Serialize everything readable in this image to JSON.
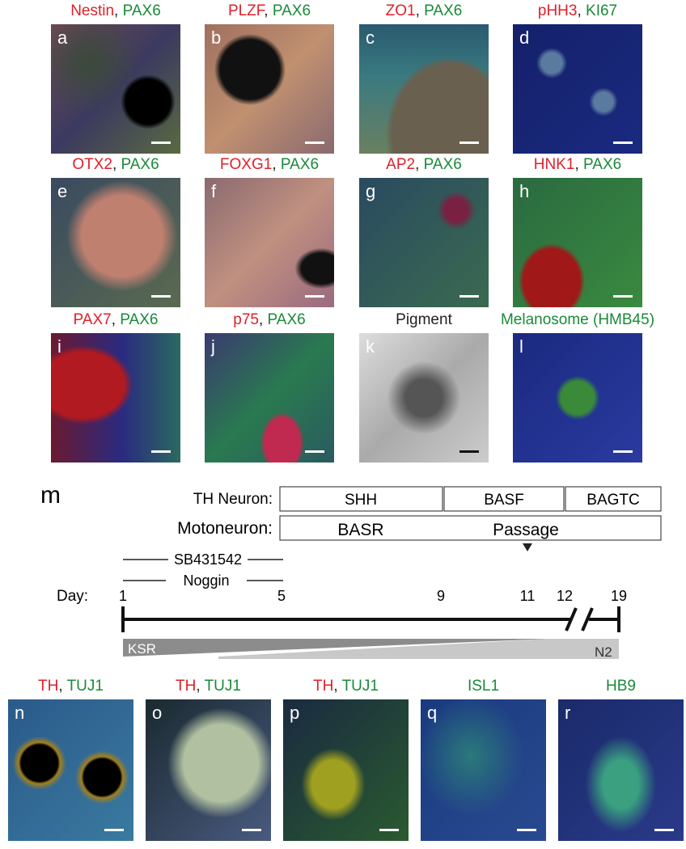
{
  "panels": [
    {
      "letter": "a",
      "title": [
        {
          "text": "Nestin",
          "color": "#e0202a"
        },
        {
          "text": ", ",
          "color": "#222"
        },
        {
          "text": "PAX6",
          "color": "#1a8a3a"
        }
      ]
    },
    {
      "letter": "b",
      "title": [
        {
          "text": "PLZF",
          "color": "#e0202a"
        },
        {
          "text": ", ",
          "color": "#222"
        },
        {
          "text": "PAX6",
          "color": "#1a8a3a"
        }
      ]
    },
    {
      "letter": "c",
      "title": [
        {
          "text": "ZO1",
          "color": "#e0202a"
        },
        {
          "text": ", ",
          "color": "#222"
        },
        {
          "text": "PAX6",
          "color": "#1a8a3a"
        }
      ]
    },
    {
      "letter": "d",
      "title": [
        {
          "text": "pHH3",
          "color": "#e0202a"
        },
        {
          "text": ", ",
          "color": "#222"
        },
        {
          "text": "KI67",
          "color": "#1a8a3a"
        }
      ]
    },
    {
      "letter": "e",
      "title": [
        {
          "text": "OTX2",
          "color": "#e0202a"
        },
        {
          "text": ", ",
          "color": "#222"
        },
        {
          "text": "PAX6",
          "color": "#1a8a3a"
        }
      ]
    },
    {
      "letter": "f",
      "title": [
        {
          "text": "FOXG1",
          "color": "#e0202a"
        },
        {
          "text": ", ",
          "color": "#222"
        },
        {
          "text": "PAX6",
          "color": "#1a8a3a"
        }
      ]
    },
    {
      "letter": "g",
      "title": [
        {
          "text": "AP2",
          "color": "#e0202a"
        },
        {
          "text": ", ",
          "color": "#222"
        },
        {
          "text": "PAX6",
          "color": "#1a8a3a"
        }
      ]
    },
    {
      "letter": "h",
      "title": [
        {
          "text": "HNK1",
          "color": "#e0202a"
        },
        {
          "text": ", ",
          "color": "#222"
        },
        {
          "text": "PAX6",
          "color": "#1a8a3a"
        }
      ]
    },
    {
      "letter": "i",
      "title": [
        {
          "text": "PAX7",
          "color": "#e0202a"
        },
        {
          "text": ", ",
          "color": "#222"
        },
        {
          "text": "PAX6",
          "color": "#1a8a3a"
        }
      ]
    },
    {
      "letter": "j",
      "title": [
        {
          "text": "p75",
          "color": "#e0202a"
        },
        {
          "text": ", ",
          "color": "#222"
        },
        {
          "text": "PAX6",
          "color": "#1a8a3a"
        }
      ]
    },
    {
      "letter": "k",
      "title": [
        {
          "text": "Pigment",
          "color": "#222"
        }
      ]
    },
    {
      "letter": "l",
      "title": [
        {
          "text": "Melanosome (HMB45)",
          "color": "#1a8a3a"
        }
      ]
    },
    {
      "letter": "n",
      "title": [
        {
          "text": "TH",
          "color": "#e0202a"
        },
        {
          "text": ", ",
          "color": "#222"
        },
        {
          "text": "TUJ1",
          "color": "#1a8a3a"
        }
      ]
    },
    {
      "letter": "o",
      "title": [
        {
          "text": "TH",
          "color": "#e0202a"
        },
        {
          "text": ", ",
          "color": "#222"
        },
        {
          "text": "TUJ1",
          "color": "#1a8a3a"
        }
      ]
    },
    {
      "letter": "p",
      "title": [
        {
          "text": "TH",
          "color": "#e0202a"
        },
        {
          "text": ", ",
          "color": "#222"
        },
        {
          "text": "TUJ1",
          "color": "#1a8a3a"
        }
      ]
    },
    {
      "letter": "q",
      "title": [
        {
          "text": "ISL1",
          "color": "#1a8a3a"
        }
      ]
    },
    {
      "letter": "r",
      "title": [
        {
          "text": "HB9",
          "color": "#1a8a3a"
        }
      ]
    }
  ],
  "timeline": {
    "letter": "m",
    "th_label": "TH Neuron:",
    "th_stages": [
      "SHH",
      "BASF",
      "BAGTC"
    ],
    "moto_label": "Motoneuron:",
    "moto_stages": [
      "BASR",
      "Passage"
    ],
    "inhibitors": [
      "SB431542",
      "Noggin"
    ],
    "day_label": "Day:",
    "days": [
      "1",
      "5",
      "9",
      "11",
      "12",
      "19"
    ],
    "media": [
      "KSR",
      "N2"
    ]
  }
}
